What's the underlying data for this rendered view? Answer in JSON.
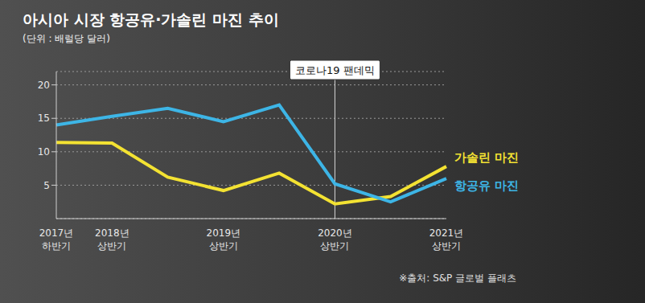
{
  "chart_data": {
    "type": "line",
    "title": "아시아 시장 항공유·가솔린 마진 추이",
    "subtitle": "(단위 : 배럴당 달러)",
    "source": "※출처: S&P 글로벌 플래츠",
    "annotation": {
      "text": "코로나19 팬데믹",
      "category": "2020년 상반기"
    },
    "categories": [
      "2017년 하반기",
      "2018년 상반기",
      null,
      "2019년 상반기",
      null,
      "2020년 상반기",
      null,
      "2021년 상반기"
    ],
    "series": [
      {
        "name": "가솔린 마진",
        "color": "#f3e232",
        "values": [
          11.4,
          11.3,
          6.2,
          4.2,
          6.8,
          2.2,
          3.3,
          7.8
        ]
      },
      {
        "name": "항공유 마진",
        "color": "#3db5e6",
        "values": [
          14,
          15.3,
          16.5,
          14.5,
          17,
          5.2,
          2.5,
          6
        ]
      }
    ],
    "ylim": [
      0,
      22
    ],
    "yticks": [
      5,
      10,
      15,
      20
    ],
    "grid": true
  }
}
